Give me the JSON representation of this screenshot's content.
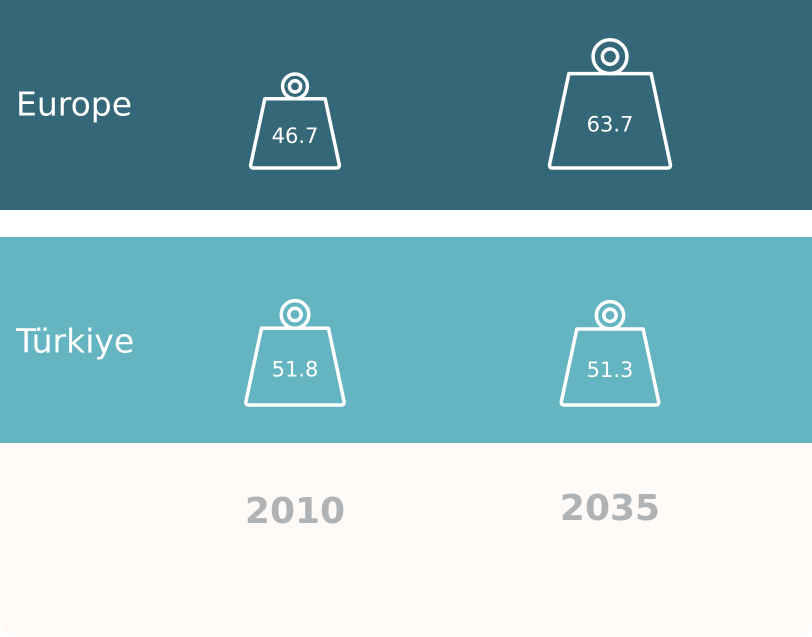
{
  "chart_data": {
    "type": "weight",
    "categories": [
      "2010",
      "2035"
    ],
    "series": [
      {
        "name": "Europe",
        "color": "#346878",
        "values": [
          46.7,
          63.7
        ]
      },
      {
        "name": "Türkiye",
        "color": "#64b4c2",
        "values": [
          51.8,
          51.3
        ]
      }
    ]
  }
}
